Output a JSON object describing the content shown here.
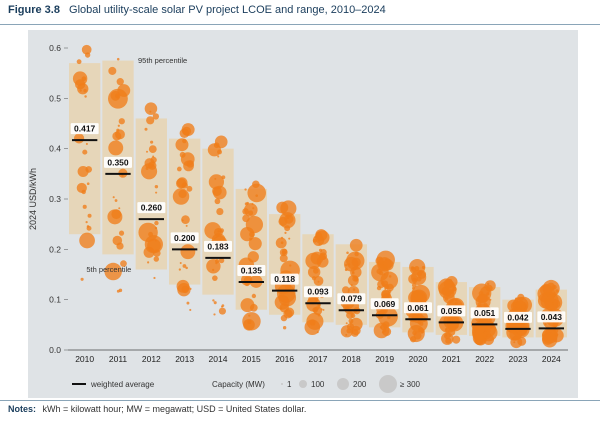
{
  "figure": {
    "label": "Figure 3.8",
    "title": "Global utility-scale solar PV project LCOE and range, 2010–2024"
  },
  "notes": {
    "label": "Notes:",
    "text": "kWh = kilowatt hour; MW = megawatt; USD = United States dollar."
  },
  "colors": {
    "bubble": "#f07d1a",
    "band": "#e8d3b0",
    "background": "#dfe3e6",
    "average_line": "#111111"
  },
  "chart_data": {
    "type": "scatter",
    "ylabel": "2024 USD/kWh",
    "ylim": [
      0,
      0.6
    ],
    "yticks": [
      "0.0",
      "0.1",
      "0.2",
      "0.3",
      "0.4",
      "0.5",
      "0.6"
    ],
    "categories": [
      "2010",
      "2011",
      "2012",
      "2013",
      "2014",
      "2015",
      "2016",
      "2017",
      "2018",
      "2019",
      "2020",
      "2021",
      "2022",
      "2023",
      "2024"
    ],
    "weighted_average": [
      0.417,
      0.35,
      0.26,
      0.2,
      0.183,
      0.135,
      0.118,
      0.093,
      0.079,
      0.069,
      0.061,
      0.055,
      0.051,
      0.042,
      0.043
    ],
    "weighted_average_labels": [
      "0.417",
      "0.350",
      "0.260",
      "0.200",
      "0.183",
      "0.135",
      "0.118",
      "0.093",
      "0.079",
      "0.069",
      "0.061",
      "0.055",
      "0.051",
      "0.042",
      "0.043"
    ],
    "percentile_95": [
      0.57,
      0.575,
      0.46,
      0.42,
      0.4,
      0.32,
      0.27,
      0.23,
      0.21,
      0.175,
      0.165,
      0.135,
      0.125,
      0.1,
      0.12
    ],
    "percentile_5": [
      0.23,
      0.19,
      0.16,
      0.13,
      0.11,
      0.08,
      0.07,
      0.055,
      0.05,
      0.045,
      0.035,
      0.03,
      0.028,
      0.025,
      0.025
    ],
    "annotations": {
      "p95": "95th percentile",
      "p5": "5th percentile"
    },
    "legend": {
      "average_label": "weighted average",
      "capacity_title": "Capacity (MW)",
      "sizes": [
        "1",
        "100",
        "200",
        "≥ 300"
      ]
    }
  }
}
